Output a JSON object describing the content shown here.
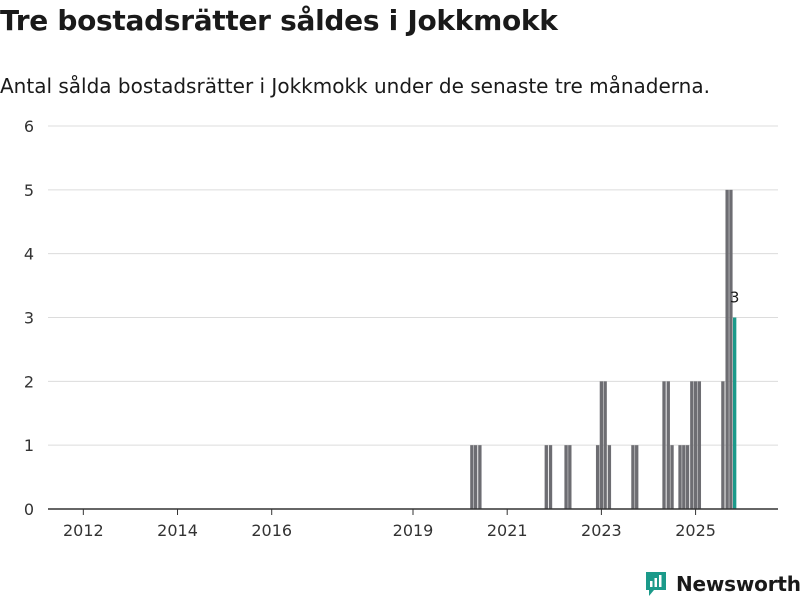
{
  "chart_data": {
    "type": "bar",
    "title": "Tre bostadsrätter såldes i Jokkmokk",
    "subtitle": "Antal sålda bostadsrätter i Jokkmokk under de senaste tre månaderna.",
    "xlabel": "",
    "ylabel": "",
    "ylim": [
      0,
      6
    ],
    "y_ticks": [
      0,
      1,
      2,
      3,
      4,
      5,
      6
    ],
    "x_range": [
      2011.25,
      2026.75
    ],
    "x_ticks": [
      2012,
      2014,
      2016,
      2019,
      2021,
      2023,
      2025
    ],
    "grid": true,
    "colors": {
      "bar": "#6d6d72",
      "highlight": "#1b9a8a",
      "grid": "#dcdcdc",
      "axis": "#333333"
    },
    "series": [
      {
        "name": "Antal sålda bostadsrätter",
        "points": [
          {
            "x": 2020.25,
            "value": 1
          },
          {
            "x": 2020.33,
            "value": 1
          },
          {
            "x": 2020.42,
            "value": 1
          },
          {
            "x": 2021.83,
            "value": 1
          },
          {
            "x": 2021.92,
            "value": 1
          },
          {
            "x": 2022.25,
            "value": 1
          },
          {
            "x": 2022.33,
            "value": 1
          },
          {
            "x": 2022.92,
            "value": 1
          },
          {
            "x": 2023.0,
            "value": 2
          },
          {
            "x": 2023.08,
            "value": 2
          },
          {
            "x": 2023.17,
            "value": 1
          },
          {
            "x": 2023.67,
            "value": 1
          },
          {
            "x": 2023.75,
            "value": 1
          },
          {
            "x": 2024.33,
            "value": 2
          },
          {
            "x": 2024.42,
            "value": 2
          },
          {
            "x": 2024.5,
            "value": 1
          },
          {
            "x": 2024.67,
            "value": 1
          },
          {
            "x": 2024.75,
            "value": 1
          },
          {
            "x": 2024.83,
            "value": 1
          },
          {
            "x": 2024.92,
            "value": 2
          },
          {
            "x": 2025.0,
            "value": 2
          },
          {
            "x": 2025.08,
            "value": 2
          },
          {
            "x": 2025.58,
            "value": 2
          },
          {
            "x": 2025.67,
            "value": 5
          },
          {
            "x": 2025.75,
            "value": 5
          },
          {
            "x": 2025.83,
            "value": 3,
            "highlight": true,
            "label": "3"
          }
        ]
      }
    ]
  },
  "branding": {
    "name": "Newsworthy",
    "icon": "newsworthy-logo-icon",
    "color": "#1b9a8a"
  }
}
